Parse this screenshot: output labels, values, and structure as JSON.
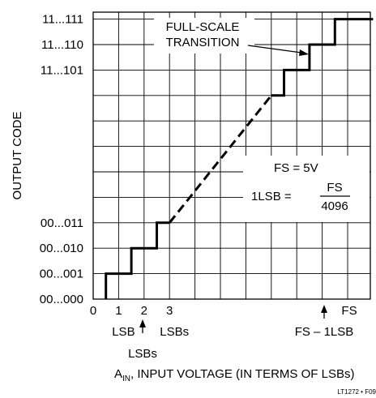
{
  "chart_data": {
    "type": "line",
    "title": "",
    "xlabel": "A",
    "xlabel_sub": "IN",
    "xlabel_rest": ", INPUT VOLTAGE (IN TERMS OF LSBs)",
    "ylabel": "OUTPUT CODE",
    "x_ticks": [
      {
        "x": 0,
        "label": "0"
      },
      {
        "x": 1,
        "label": "1"
      },
      {
        "x": 2,
        "label": "2"
      },
      {
        "x": 3,
        "label": "3"
      },
      {
        "x": 4096,
        "label": "FS"
      }
    ],
    "x_tick_sublabels": [
      {
        "x": 1,
        "label": "LSB"
      },
      {
        "x": 3,
        "label": "LSBs"
      }
    ],
    "y_ticks": [
      {
        "code": 0,
        "label": "00...000"
      },
      {
        "code": 1,
        "label": "00...001"
      },
      {
        "code": 2,
        "label": "00...010"
      },
      {
        "code": 3,
        "label": "00...011"
      },
      {
        "code": 4093,
        "label": "11...101"
      },
      {
        "code": 4094,
        "label": "11...110"
      },
      {
        "code": 4095,
        "label": "11...111"
      }
    ],
    "series": [
      {
        "style": "solid",
        "points": [
          [
            0.5,
            0
          ],
          [
            0.5,
            1
          ],
          [
            1.5,
            1
          ],
          [
            1.5,
            2
          ],
          [
            2.5,
            2
          ],
          [
            2.5,
            3
          ],
          [
            3,
            3
          ]
        ]
      },
      {
        "style": "dashed",
        "points": [
          [
            3,
            3
          ],
          [
            4092,
            4092
          ]
        ]
      },
      {
        "style": "solid",
        "points": [
          [
            4092,
            4092
          ],
          [
            4092.5,
            4092
          ],
          [
            4092.5,
            4093
          ],
          [
            4093.5,
            4093
          ],
          [
            4093.5,
            4094
          ],
          [
            4094.5,
            4094
          ],
          [
            4094.5,
            4095
          ],
          [
            4096,
            4095
          ]
        ]
      }
    ],
    "annotations": {
      "full_scale_line1": "FULL-SCALE",
      "full_scale_line2": "TRANSITION",
      "two_lsb_arrow_label": "LSBs",
      "fs_minus_label": "FS – 1LSB",
      "fs_eq": "FS = 5V",
      "lsb_eq_left": "1LSB =",
      "lsb_eq_num": "FS",
      "lsb_eq_den": "4096"
    },
    "grid": true,
    "footer": "LT1272 • F09"
  }
}
